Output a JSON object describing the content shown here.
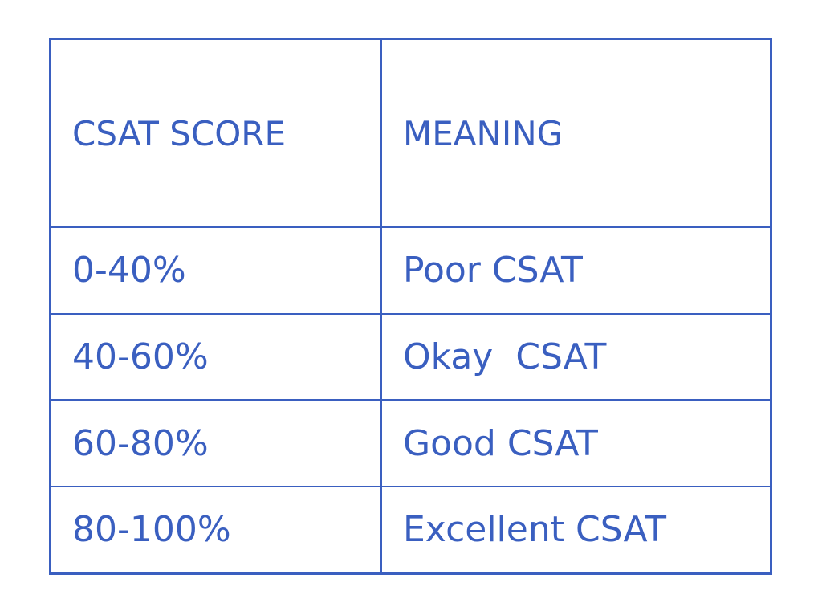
{
  "table": {
    "header": [
      "CSAT SCORE",
      "MEANING"
    ],
    "rows": [
      [
        "0-40%",
        "Poor CSAT"
      ],
      [
        "40-60%",
        "Okay  CSAT"
      ],
      [
        "60-80%",
        "Good CSAT"
      ],
      [
        "80-100%",
        "Excellent CSAT"
      ]
    ]
  }
}
